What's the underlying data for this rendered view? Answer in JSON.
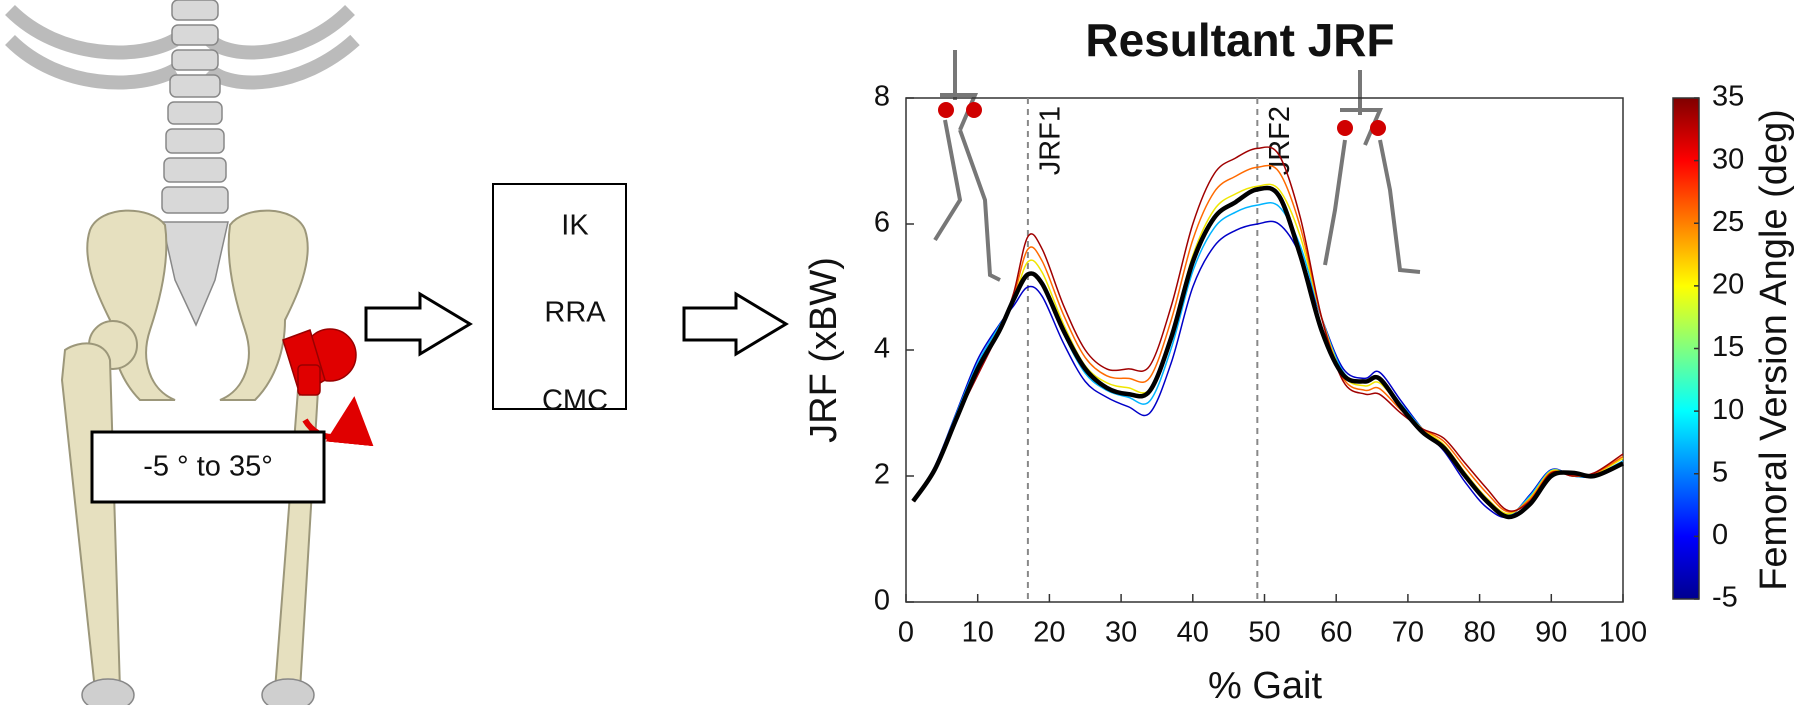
{
  "diagram": {
    "steps": [
      "IK",
      "RRA",
      "CMC"
    ],
    "range_label": "-5 ° to 35°"
  },
  "chart_data": {
    "type": "line",
    "title": "Resultant JRF",
    "x_label": "% Gait",
    "y_label": "JRF (xBW)",
    "xlim": [
      0,
      100
    ],
    "xticks": [
      0,
      10,
      20,
      30,
      40,
      50,
      60,
      70,
      80,
      90,
      100
    ],
    "ylim": [
      0,
      8
    ],
    "yticks": [
      0,
      2,
      4,
      6,
      8
    ],
    "annotations": [
      {
        "x": 17,
        "label": "JRF1"
      },
      {
        "x": 49,
        "label": "JRF2"
      }
    ],
    "colorbar": {
      "label": "Femoral Version  Angle (deg)",
      "colormap": "jet",
      "lim": [
        -5,
        35
      ],
      "ticks": [
        -5,
        0,
        5,
        10,
        15,
        20,
        25,
        30,
        35
      ]
    },
    "x": [
      1,
      4,
      7,
      10,
      13,
      15,
      17,
      19,
      22,
      25,
      28,
      31,
      34,
      37,
      40,
      43,
      46,
      49,
      52,
      55,
      58,
      61,
      64,
      66,
      69,
      72,
      75,
      78,
      81,
      84,
      87,
      90,
      93,
      96,
      100
    ],
    "series": [
      {
        "color": "#0000c8",
        "width": 1.5,
        "values": [
          1.6,
          2.15,
          3.0,
          3.85,
          4.4,
          4.7,
          5.0,
          4.85,
          4.1,
          3.5,
          3.25,
          3.1,
          3.0,
          3.8,
          5.0,
          5.65,
          5.9,
          6.0,
          6.0,
          5.5,
          4.5,
          3.7,
          3.55,
          3.65,
          3.2,
          2.75,
          2.4,
          1.9,
          1.5,
          1.35,
          1.7,
          2.1,
          2.0,
          2.0,
          2.2
        ]
      },
      {
        "color": "#00b4ff",
        "width": 1.5,
        "values": [
          1.6,
          2.14,
          2.98,
          3.79,
          4.38,
          4.75,
          5.2,
          5.04,
          4.25,
          3.63,
          3.36,
          3.25,
          3.19,
          4.03,
          5.25,
          5.94,
          6.19,
          6.3,
          6.28,
          5.65,
          4.5,
          3.65,
          3.49,
          3.56,
          3.15,
          2.75,
          2.45,
          1.98,
          1.58,
          1.38,
          1.68,
          2.09,
          2.0,
          2.01,
          2.24
        ]
      },
      {
        "color": "#f0e600",
        "width": 1.5,
        "values": [
          1.6,
          2.13,
          2.95,
          3.73,
          4.35,
          4.8,
          5.4,
          5.23,
          4.4,
          3.75,
          3.48,
          3.4,
          3.38,
          4.25,
          5.5,
          6.23,
          6.48,
          6.6,
          6.55,
          5.8,
          4.5,
          3.6,
          3.43,
          3.48,
          3.1,
          2.75,
          2.5,
          2.05,
          1.65,
          1.4,
          1.65,
          2.08,
          2.0,
          2.03,
          2.28
        ]
      },
      {
        "color": "#ff6a00",
        "width": 1.5,
        "values": [
          1.6,
          2.11,
          2.93,
          3.66,
          4.33,
          4.85,
          5.6,
          5.41,
          4.55,
          3.88,
          3.59,
          3.55,
          3.56,
          4.48,
          5.75,
          6.51,
          6.76,
          6.9,
          6.83,
          5.95,
          4.5,
          3.55,
          3.36,
          3.39,
          3.05,
          2.75,
          2.55,
          2.13,
          1.73,
          1.43,
          1.63,
          2.06,
          2.0,
          2.04,
          2.31
        ]
      },
      {
        "color": "#a00000",
        "width": 1.5,
        "values": [
          1.6,
          2.1,
          2.9,
          3.6,
          4.3,
          4.9,
          5.8,
          5.6,
          4.7,
          4.0,
          3.7,
          3.7,
          3.75,
          4.7,
          6.0,
          6.8,
          7.05,
          7.2,
          7.1,
          6.1,
          4.5,
          3.5,
          3.3,
          3.3,
          3.0,
          2.75,
          2.6,
          2.2,
          1.8,
          1.45,
          1.6,
          2.05,
          2.0,
          2.05,
          2.35
        ]
      },
      {
        "color": "#000000",
        "width": 4.5,
        "values": [
          1.6,
          2.1,
          2.9,
          3.7,
          4.3,
          4.8,
          5.2,
          5.05,
          4.3,
          3.7,
          3.4,
          3.3,
          3.35,
          4.2,
          5.4,
          6.1,
          6.35,
          6.55,
          6.45,
          5.5,
          4.3,
          3.6,
          3.5,
          3.55,
          3.1,
          2.7,
          2.45,
          2.0,
          1.6,
          1.35,
          1.55,
          2.0,
          2.05,
          2.0,
          2.2
        ]
      }
    ]
  }
}
